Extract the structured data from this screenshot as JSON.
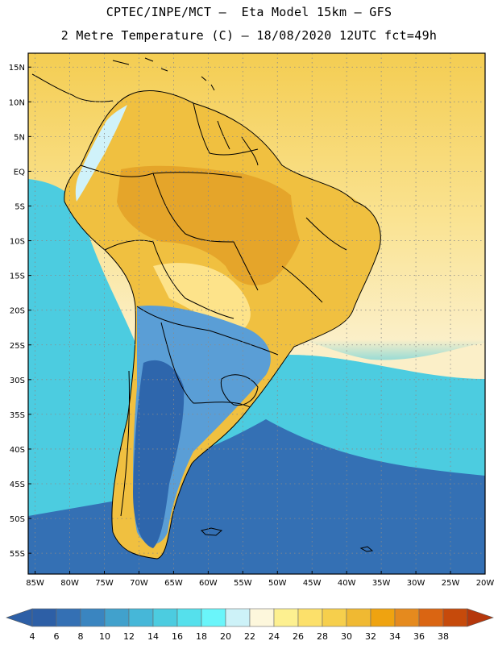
{
  "header": {
    "line1": "CPTEC/INPE/MCT –  Eta Model 15km – GFS",
    "line2": "2 Metre Temperature (C) – 18/08/2020 12UTC fct=49h"
  },
  "axes": {
    "lat_labels": [
      "15N",
      "10N",
      "5N",
      "EQ",
      "5S",
      "10S",
      "15S",
      "20S",
      "25S",
      "30S",
      "35S",
      "40S",
      "45S",
      "50S",
      "55S"
    ],
    "lat_values": [
      15,
      10,
      5,
      0,
      -5,
      -10,
      -15,
      -20,
      -25,
      -30,
      -35,
      -40,
      -45,
      -50,
      -55
    ],
    "lon_labels": [
      "85W",
      "80W",
      "75W",
      "70W",
      "65W",
      "60W",
      "55W",
      "50W",
      "45W",
      "40W",
      "35W",
      "30W",
      "25W",
      "20W"
    ],
    "lon_values": [
      -85,
      -80,
      -75,
      -70,
      -65,
      -60,
      -55,
      -50,
      -45,
      -40,
      -35,
      -30,
      -25,
      -20
    ],
    "lon_range": [
      -86,
      -20
    ],
    "lat_range": [
      -58,
      17
    ]
  },
  "legend": {
    "labels": [
      "4",
      "6",
      "8",
      "10",
      "12",
      "14",
      "16",
      "18",
      "20",
      "22",
      "24",
      "26",
      "28",
      "30",
      "32",
      "34",
      "36",
      "38"
    ],
    "low_color": "#2d5fa6",
    "high_color": "#b5370c",
    "colors": [
      "#2d5fa6",
      "#3470b4",
      "#3a85c0",
      "#41a1cc",
      "#46b7d8",
      "#4ccce0",
      "#55e0ec",
      "#6af5fa",
      "#cdf2f8",
      "#fdf7dc",
      "#fdf090",
      "#fce06a",
      "#f6cf4c",
      "#f0b932",
      "#efa310",
      "#e58a1e",
      "#da6512",
      "#c64a0b"
    ]
  },
  "map": {
    "ocean_north": "#f4cd52",
    "ocean_tropical": "#fae392",
    "ocean_subtropical": "#fbefc8",
    "ocean_cool": "#4ccce0",
    "ocean_cold": "#3470b4",
    "land_hot": "#e5a52a",
    "land_warm": "#f0c040",
    "land_mild": "#fde38a",
    "land_cool": "#5a9ed6",
    "land_cold": "#2e66ac",
    "andes_ice": "#d0f2fa",
    "border_color": "#000000",
    "grid_color": "#8a8a8a"
  }
}
